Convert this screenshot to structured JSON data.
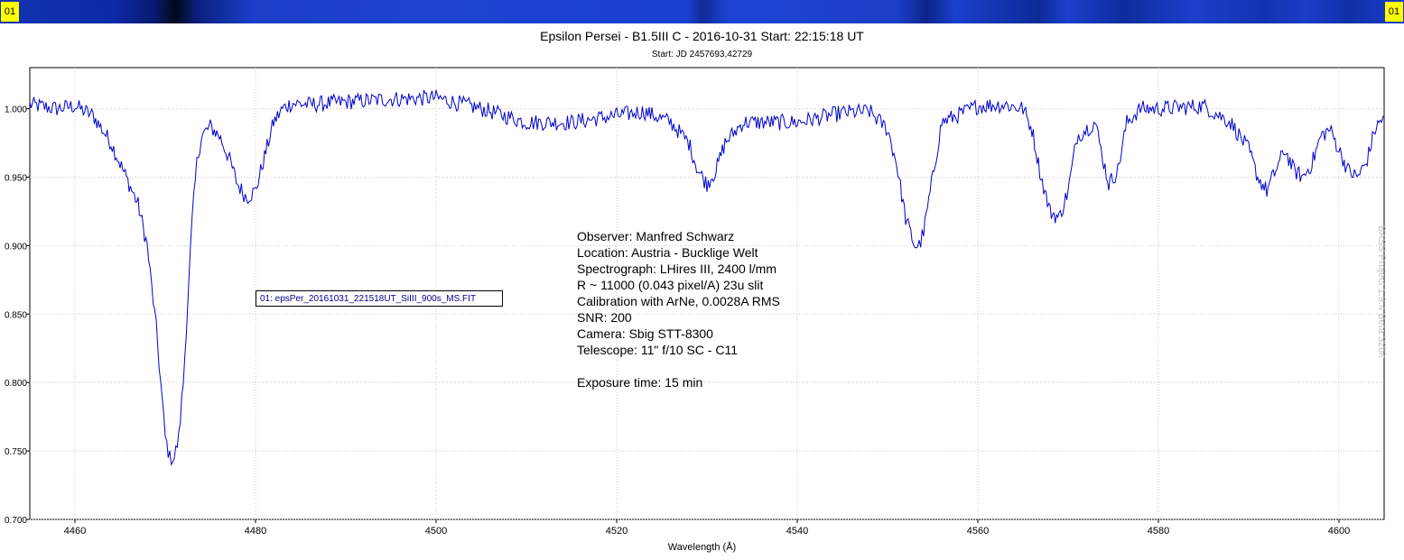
{
  "header": {
    "corner_left": "01",
    "corner_right": "01"
  },
  "watermark": "BASS Project 1.9.4 Beta 32bit",
  "legend": {
    "entry": "01: epsPer_20161031_221518UT_SiIII_900s_MS.FIT"
  },
  "annotation": {
    "lines": [
      "Observer: Manfred Schwarz",
      "Location: Austria - Bucklige Welt",
      "Spectrograph: LHires III, 2400 l/mm",
      "R ~ 11000 (0.043 pixel/A) 23u slit",
      "Calibration with ArNe, 0.0028A RMS",
      "SNR: 200",
      "Camera: Sbig STT-8300",
      "Telescope: 11\" f/10 SC - C11",
      "",
      "Exposure time: 15 min"
    ]
  },
  "colors": {
    "series": "#0000cc",
    "grid": "#c8c8c8",
    "legend_text": "#00008b",
    "corner_label_bg": "#ffff00"
  },
  "chart_data": {
    "type": "line",
    "title": "Epsilon Persei - B1.5III C - 2016-10-31 Start: 22:15:18 UT",
    "subtitle": "Start: JD 2457693,42729",
    "xlabel": "Wavelength (Å)",
    "ylabel": "",
    "xlim": [
      4455,
      4605
    ],
    "ylim": [
      0.7,
      1.03
    ],
    "xticks": [
      4460,
      4480,
      4500,
      4520,
      4540,
      4560,
      4580,
      4600
    ],
    "yticks": [
      0.7,
      0.75,
      0.8,
      0.85,
      0.9,
      0.95,
      1.0
    ],
    "ytick_labels": [
      "0.700",
      "0.750",
      "0.800",
      "0.850",
      "0.900",
      "0.950",
      "1.000"
    ],
    "grid": true,
    "legend_position": "left-center",
    "series": [
      {
        "name": "01: epsPer_20161031_221518UT_SiIII_900s_MS.FIT",
        "x": [
          4455.0,
          4458.0,
          4460.0,
          4462.0,
          4463.0,
          4464.0,
          4465.0,
          4466.0,
          4467.0,
          4468.0,
          4468.5,
          4469.0,
          4469.5,
          4470.0,
          4470.5,
          4471.0,
          4471.5,
          4472.0,
          4472.5,
          4473.0,
          4473.5,
          4474.0,
          4475.0,
          4476.0,
          4477.0,
          4478.0,
          4479.0,
          4480.0,
          4481.0,
          4482.0,
          4483.0,
          4484.0,
          4486.0,
          4490.0,
          4495.0,
          4500.0,
          4505.0,
          4510.0,
          4515.0,
          4520.0,
          4523.0,
          4526.0,
          4528.0,
          4529.0,
          4530.0,
          4531.0,
          4532.0,
          4534.0,
          4540.0,
          4545.0,
          4548.0,
          4550.0,
          4551.0,
          4552.0,
          4553.0,
          4553.5,
          4554.0,
          4555.0,
          4556.0,
          4560.0,
          4563.0,
          4565.0,
          4566.0,
          4567.0,
          4568.0,
          4569.0,
          4570.0,
          4571.0,
          4573.0,
          4573.8,
          4574.5,
          4575.5,
          4576.5,
          4578.0,
          4580.0,
          4585.0,
          4588.0,
          4590.0,
          4591.0,
          4592.0,
          4593.0,
          4594.0,
          4595.0,
          4596.0,
          4597.0,
          4598.0,
          4599.0,
          4600.0,
          4601.0,
          4602.0,
          4603.0,
          4604.0,
          4605.0
        ],
        "y": [
          1.003,
          1.0,
          1.002,
          0.995,
          0.985,
          0.975,
          0.96,
          0.945,
          0.93,
          0.9,
          0.87,
          0.84,
          0.8,
          0.76,
          0.745,
          0.745,
          0.76,
          0.8,
          0.86,
          0.92,
          0.96,
          0.98,
          0.987,
          0.98,
          0.965,
          0.945,
          0.935,
          0.94,
          0.965,
          0.99,
          1.0,
          1.004,
          1.003,
          1.005,
          1.007,
          1.008,
          1.0,
          0.99,
          0.99,
          0.995,
          0.998,
          0.99,
          0.975,
          0.955,
          0.945,
          0.955,
          0.975,
          0.99,
          0.99,
          0.997,
          0.998,
          0.985,
          0.96,
          0.92,
          0.9,
          0.9,
          0.91,
          0.95,
          0.99,
          1.002,
          1.003,
          1.0,
          0.985,
          0.95,
          0.925,
          0.92,
          0.94,
          0.98,
          0.99,
          0.965,
          0.945,
          0.955,
          0.99,
          1.0,
          1.0,
          1.002,
          0.99,
          0.97,
          0.95,
          0.94,
          0.955,
          0.97,
          0.955,
          0.95,
          0.96,
          0.98,
          0.985,
          0.97,
          0.955,
          0.95,
          0.96,
          0.985,
          0.995
        ]
      }
    ]
  }
}
